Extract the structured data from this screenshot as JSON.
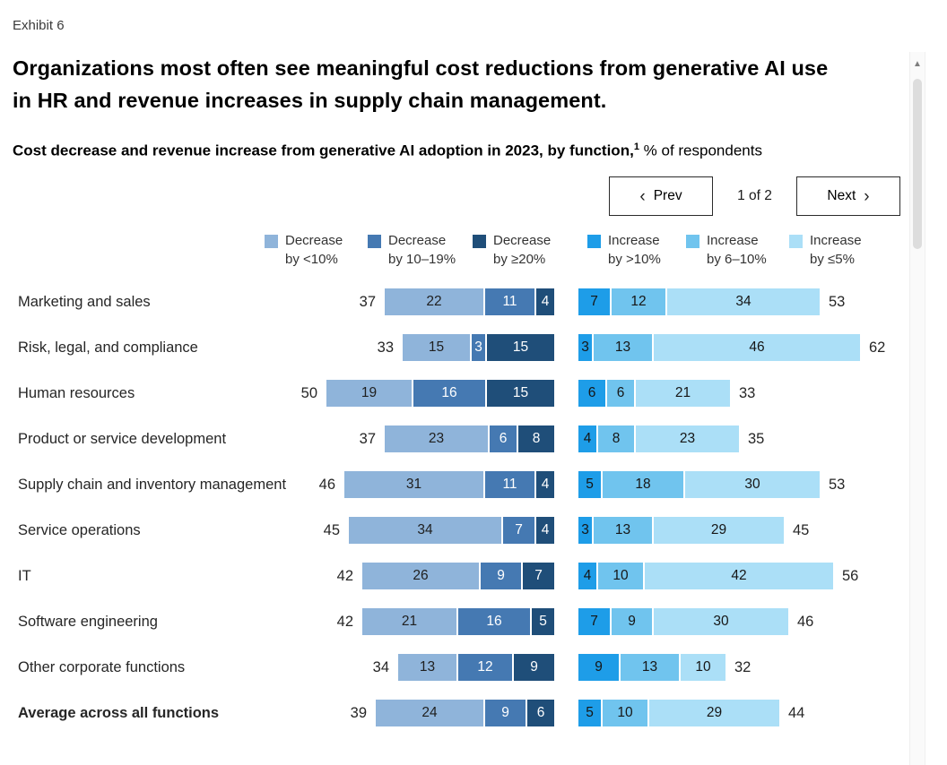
{
  "header": {
    "exhibit_label": "Exhibit 6",
    "title_line1": "Organizations most often see meaningful cost reductions from generative AI use",
    "title_line2": "in HR and revenue increases in supply chain management.",
    "subtitle_bold": "Cost decrease and revenue increase from generative AI adoption in 2023, by function,",
    "subtitle_sup": "1",
    "subtitle_regular": " % of respondents"
  },
  "nav": {
    "prev_label": "Prev",
    "next_label": "Next",
    "page_indicator": "1 of 2",
    "chevron_left": "‹",
    "chevron_right": "›"
  },
  "icons": {
    "scroll_up_arrow": "▲"
  },
  "chart_data": {
    "type": "bar",
    "orientation": "horizontal",
    "title": "Cost decrease and revenue increase from generative AI adoption in 2023, by function, % of respondents",
    "unit": "% of respondents",
    "legend_position": "top",
    "axis": "none (values labeled directly on segments; totals labeled outside bars)",
    "series": {
      "decrease": [
        {
          "line1": "Decrease",
          "line2": "by <10%",
          "name": "Decrease by <10%",
          "color": "#8FB4DA",
          "text_color": "#1f1f1f"
        },
        {
          "line1": "Decrease",
          "line2": "by 10–19%",
          "name": "Decrease by 10–19%",
          "color": "#4579B2",
          "text_color": "#ffffff"
        },
        {
          "line1": "Decrease",
          "line2": "by ≥20%",
          "name": "Decrease by ≥20%",
          "color": "#1F4E79",
          "text_color": "#ffffff"
        }
      ],
      "increase": [
        {
          "line1": "Increase",
          "line2": "by >10%",
          "name": "Increase by >10%",
          "color": "#1E9DE8",
          "text_color": "#161616"
        },
        {
          "line1": "Increase",
          "line2": "by 6–10%",
          "name": "Increase by 6–10%",
          "color": "#70C4EE",
          "text_color": "#161616"
        },
        {
          "line1": "Increase",
          "line2": "by ≤5%",
          "name": "Increase by ≤5%",
          "color": "#ABDFF7",
          "text_color": "#161616"
        }
      ]
    },
    "rows": [
      {
        "label": "Marketing and sales",
        "bold": false,
        "decrease_total": 37,
        "decrease": [
          22,
          11,
          4
        ],
        "increase_total": 53,
        "increase": [
          7,
          12,
          34
        ]
      },
      {
        "label": "Risk, legal, and compliance",
        "bold": false,
        "decrease_total": 33,
        "decrease": [
          15,
          3,
          15
        ],
        "increase_total": 62,
        "increase": [
          3,
          13,
          46
        ]
      },
      {
        "label": "Human resources",
        "bold": false,
        "decrease_total": 50,
        "decrease": [
          19,
          16,
          15
        ],
        "increase_total": 33,
        "increase": [
          6,
          6,
          21
        ]
      },
      {
        "label": "Product or service development",
        "bold": false,
        "decrease_total": 37,
        "decrease": [
          23,
          6,
          8
        ],
        "increase_total": 35,
        "increase": [
          4,
          8,
          23
        ]
      },
      {
        "label": "Supply chain and inventory management",
        "bold": false,
        "decrease_total": 46,
        "decrease": [
          31,
          11,
          4
        ],
        "increase_total": 53,
        "increase": [
          5,
          18,
          30
        ]
      },
      {
        "label": "Service operations",
        "bold": false,
        "decrease_total": 45,
        "decrease": [
          34,
          7,
          4
        ],
        "increase_total": 45,
        "increase": [
          3,
          13,
          29
        ]
      },
      {
        "label": "IT",
        "bold": false,
        "decrease_total": 42,
        "decrease": [
          26,
          9,
          7
        ],
        "increase_total": 56,
        "increase": [
          4,
          10,
          42
        ]
      },
      {
        "label": "Software engineering",
        "bold": false,
        "decrease_total": 42,
        "decrease": [
          21,
          16,
          5
        ],
        "increase_total": 46,
        "increase": [
          7,
          9,
          30
        ]
      },
      {
        "label": "Other corporate functions",
        "bold": false,
        "decrease_total": 34,
        "decrease": [
          13,
          12,
          9
        ],
        "increase_total": 32,
        "increase": [
          9,
          13,
          10
        ]
      },
      {
        "label": "Average across all functions",
        "bold": true,
        "decrease_total": 39,
        "decrease": [
          24,
          9,
          6
        ],
        "increase_total": 44,
        "increase": [
          5,
          10,
          29
        ]
      }
    ]
  }
}
